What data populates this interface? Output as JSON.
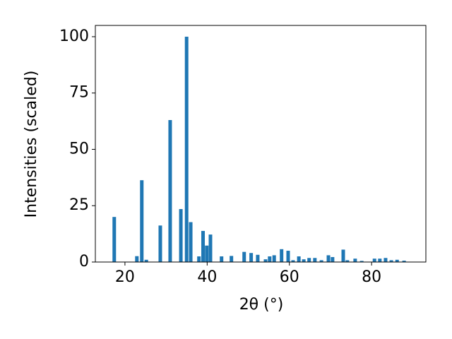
{
  "chart_data": {
    "type": "bar",
    "xlabel": "2θ (°)",
    "ylabel": "Intensities (scaled)",
    "x": [
      17.4,
      22.9,
      24.1,
      25.2,
      28.6,
      31.0,
      33.6,
      35.0,
      36.0,
      38.0,
      39.0,
      39.9,
      40.8,
      43.5,
      45.9,
      49.0,
      50.7,
      52.3,
      54.2,
      55.2,
      56.3,
      58.1,
      59.7,
      60.9,
      62.3,
      63.5,
      64.8,
      66.2,
      67.8,
      69.5,
      70.5,
      73.1,
      74.1,
      76.0,
      77.6,
      80.7,
      82.0,
      83.4,
      84.8,
      86.2,
      87.9
    ],
    "values": [
      20,
      2.6,
      36.3,
      1,
      16.2,
      63,
      23.5,
      100,
      17.7,
      2.5,
      13.8,
      7.3,
      12.2,
      2.5,
      2.7,
      4.5,
      4.0,
      3.2,
      1.2,
      2.5,
      3.0,
      5.7,
      5.0,
      0.8,
      2.5,
      1.2,
      1.8,
      1.8,
      0.8,
      3.0,
      2.2,
      5.5,
      0.8,
      1.5,
      0.5,
      1.5,
      1.5,
      1.8,
      0.8,
      1.0,
      0.6
    ],
    "color": "#1f77b4",
    "xlim": [
      12.8,
      93.2
    ],
    "xticks": [
      20,
      40,
      60,
      80
    ],
    "ylim": [
      0,
      105
    ],
    "yticks": [
      0,
      25,
      50,
      75,
      100
    ]
  }
}
